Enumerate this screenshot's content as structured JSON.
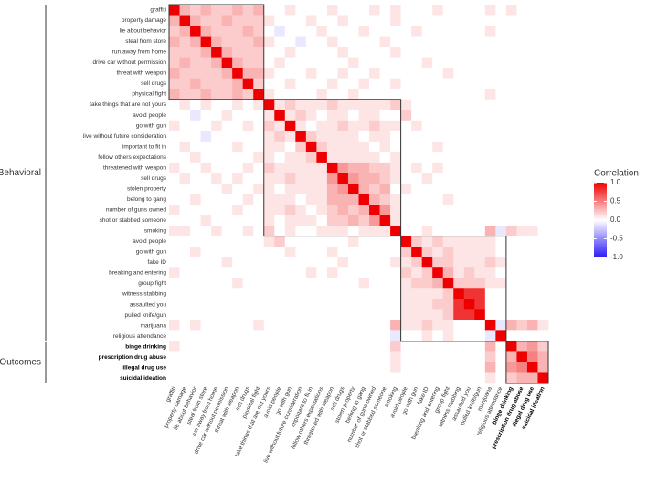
{
  "chart_data": {
    "type": "heatmap",
    "legend_title": "Correlation",
    "clim": [
      -1,
      1
    ],
    "colors": {
      "low": "#2a19f5",
      "mid": "#ffffff",
      "high": "#ee0000"
    },
    "legend_ticks": [
      {
        "value": 1,
        "label": "1.0"
      },
      {
        "value": 0.5,
        "label": "0.5"
      },
      {
        "value": 0,
        "label": "0.0"
      },
      {
        "value": -0.5,
        "label": "-0.5"
      },
      {
        "value": -1,
        "label": "-1.0"
      }
    ],
    "groups": [
      {
        "name": "Behavioral",
        "variables": [
          "graffiti",
          "property damage",
          "lie about behavior",
          "steal from store",
          "run away from home",
          "drive car without permission",
          "threat with weapon",
          "sell drugs",
          "physical fight",
          "take things that are not yours",
          "avoid people",
          "go with gun",
          "live without future consideration",
          "important to fit in",
          "follow others expectations",
          "threatened with weapon",
          "sell drugs",
          "stolen property",
          "belong to gang",
          "number of guns owned",
          "shot or stabbed someone",
          "smoking",
          "avoid people",
          "go with gun",
          "fake ID",
          "breaking and entering",
          "group fight",
          "witness stabbing",
          "assaulted you",
          "pulled knife/gun",
          "marijuana",
          "religious attendance"
        ]
      },
      {
        "name": "Outcomes",
        "variables": [
          "binge drinking",
          "prescription drug abuse",
          "illegal drug use",
          "suicidal ideation"
        ]
      }
    ],
    "values": [
      [
        1
      ],
      [
        0.3,
        1
      ],
      [
        0.2,
        0.3,
        1
      ],
      [
        0.3,
        0.2,
        0.3,
        1
      ],
      [
        0.2,
        0.2,
        0.2,
        0.3,
        1
      ],
      [
        0.2,
        0.3,
        0.2,
        0.2,
        0.3,
        1
      ],
      [
        0.3,
        0.2,
        0.2,
        0.2,
        0.2,
        0.3,
        1
      ],
      [
        0.2,
        0.2,
        0.3,
        0.2,
        0.2,
        0.2,
        0.3,
        1
      ],
      [
        0.3,
        0.2,
        0.2,
        0.3,
        0.2,
        0.2,
        0.3,
        0.2,
        1
      ],
      [
        0,
        0.1,
        0,
        0.1,
        0,
        0,
        0.1,
        0,
        0.1,
        1
      ],
      [
        0,
        0,
        -0.1,
        0,
        0,
        0.1,
        0,
        0,
        0,
        0.1,
        1
      ],
      [
        0.1,
        0,
        0,
        0,
        0.1,
        0,
        0,
        0.1,
        0,
        0.2,
        0.1,
        1
      ],
      [
        0,
        0,
        0,
        -0.1,
        0,
        0,
        0,
        0,
        0,
        0.1,
        0.2,
        0.1,
        1
      ],
      [
        0,
        0.1,
        0,
        0,
        0,
        0,
        0.1,
        0,
        0,
        0.1,
        0.1,
        0,
        0.2,
        1
      ],
      [
        0,
        0,
        0.1,
        0,
        0,
        0,
        0,
        0,
        0.1,
        0.1,
        0,
        0.1,
        0.1,
        0.2,
        1
      ],
      [
        0.1,
        0,
        0,
        0.1,
        0,
        0,
        0,
        0.1,
        0,
        0.2,
        0.1,
        0.1,
        0.1,
        0.1,
        0.1,
        1
      ],
      [
        0,
        0.1,
        0,
        0,
        0.1,
        0,
        0.1,
        0,
        0,
        0.1,
        0.1,
        0.2,
        0.1,
        0.1,
        0.1,
        0.4,
        1
      ],
      [
        0,
        0,
        0,
        0,
        0,
        0.1,
        0,
        0,
        0.1,
        0.1,
        0,
        0.1,
        0.1,
        0.1,
        0.1,
        0.3,
        0.4,
        1
      ],
      [
        0,
        0,
        0.1,
        0,
        0,
        0,
        0,
        0.1,
        0,
        0.1,
        0.1,
        0.1,
        0,
        0.1,
        0.1,
        0.3,
        0.3,
        0.3,
        1
      ],
      [
        0.1,
        0,
        0,
        0,
        0,
        0,
        0.1,
        0,
        0,
        0.1,
        0.1,
        0.2,
        0.1,
        0,
        0.1,
        0.2,
        0.3,
        0.2,
        0.3,
        1
      ],
      [
        0,
        0,
        0,
        0.1,
        0,
        0,
        0,
        0,
        0,
        0.1,
        0,
        0.1,
        0.1,
        0.1,
        0,
        0.2,
        0.2,
        0.3,
        0.2,
        0.4,
        1
      ],
      [
        0.1,
        0.1,
        0,
        0,
        0.1,
        0,
        0,
        0.1,
        0,
        0.2,
        0,
        0.1,
        0,
        0,
        0.1,
        0.1,
        0.1,
        0,
        0.1,
        0.1,
        0.1,
        1
      ],
      [
        0,
        0,
        0,
        0,
        0,
        0,
        0,
        0,
        0,
        0.1,
        0.2,
        0,
        0,
        0,
        0,
        0,
        0,
        0.1,
        0,
        0,
        0,
        0,
        1
      ],
      [
        0,
        0,
        0.1,
        0,
        0,
        0,
        0,
        0,
        0,
        0,
        0,
        0.1,
        0,
        0,
        0,
        0.1,
        0,
        0,
        0,
        0,
        0,
        0,
        0.2,
        1
      ],
      [
        0,
        0,
        0,
        0,
        0,
        0.1,
        0,
        0,
        0,
        0,
        0,
        0,
        0,
        0,
        0,
        0,
        0.1,
        0,
        0,
        0,
        0,
        0.1,
        0.1,
        0.2,
        1
      ],
      [
        0.1,
        0,
        0,
        0,
        0,
        0,
        0,
        0,
        0,
        0,
        0,
        0,
        0,
        0.1,
        0,
        0.1,
        0,
        0,
        0,
        0,
        0,
        0,
        0.2,
        0.1,
        0.2,
        1
      ],
      [
        0,
        0,
        0,
        0,
        0,
        0,
        0.1,
        0,
        0,
        0,
        0,
        0,
        0,
        0,
        0,
        0,
        0,
        0,
        0.1,
        0,
        0,
        0,
        0.1,
        0.2,
        0.2,
        0.3,
        1
      ],
      [
        0,
        0,
        0,
        0,
        0,
        0,
        0,
        0,
        0,
        0,
        0,
        0,
        0,
        0,
        0,
        0,
        0,
        0,
        0,
        0,
        0,
        0,
        0.1,
        0.1,
        0.1,
        0.1,
        0.2,
        1
      ],
      [
        0,
        0,
        0,
        0,
        0,
        0,
        0,
        0,
        0,
        0,
        0,
        0,
        0,
        0,
        0,
        0,
        0,
        0,
        0,
        0,
        0,
        0,
        0.1,
        0.1,
        0.1,
        0.2,
        0.2,
        0.8,
        1
      ],
      [
        0,
        0,
        0,
        0,
        0,
        0,
        0,
        0,
        0,
        0,
        0,
        0,
        0,
        0,
        0,
        0,
        0,
        0,
        0,
        0,
        0,
        0,
        0.1,
        0.1,
        0.1,
        0.1,
        0.2,
        0.8,
        0.8,
        1
      ],
      [
        0.1,
        0,
        0.1,
        0,
        0,
        0,
        0,
        0,
        0.1,
        0,
        0,
        0,
        0,
        0,
        0,
        0,
        0,
        0,
        0,
        0,
        0,
        0.3,
        0.1,
        0.1,
        0.2,
        0.1,
        0.1,
        0,
        0,
        0,
        1
      ],
      [
        0,
        0,
        0,
        0,
        0,
        0,
        0,
        0,
        0,
        0,
        0,
        0,
        0,
        0,
        0,
        0,
        0,
        0,
        0,
        0,
        0,
        -0.1,
        0,
        0,
        0.1,
        0,
        0.1,
        0,
        0,
        0,
        -0.1,
        1
      ],
      [
        0.1,
        0,
        0,
        0,
        0,
        0,
        0,
        0,
        0,
        0,
        0,
        0,
        0,
        0,
        0,
        0,
        0,
        0,
        0,
        0,
        0,
        0.2,
        0,
        0,
        0,
        0,
        0,
        0,
        0,
        0,
        0.3,
        0,
        1
      ],
      [
        0,
        0,
        0,
        0,
        0,
        0,
        0,
        0,
        0,
        0,
        0,
        0,
        0,
        0,
        0,
        0,
        0,
        0,
        0,
        0,
        0,
        0.1,
        0,
        0,
        0,
        0,
        0,
        0,
        0,
        0,
        0.2,
        0,
        0.3,
        1
      ],
      [
        0,
        0,
        0,
        0,
        0,
        0,
        0,
        0,
        0,
        0,
        0,
        0,
        0,
        0,
        0,
        0,
        0,
        0,
        0,
        0,
        0,
        0.1,
        0,
        0,
        0,
        0,
        0,
        0,
        0,
        0,
        0.3,
        0,
        0.4,
        0.5,
        1
      ],
      [
        0,
        0,
        0,
        0,
        0,
        0,
        0,
        0,
        0,
        0,
        0,
        0,
        0,
        0,
        0,
        0,
        0,
        0,
        0,
        0,
        0,
        0,
        0,
        0,
        0,
        0,
        0,
        0,
        0,
        0,
        0.1,
        0,
        0.2,
        0.3,
        0.3,
        1
      ]
    ]
  }
}
